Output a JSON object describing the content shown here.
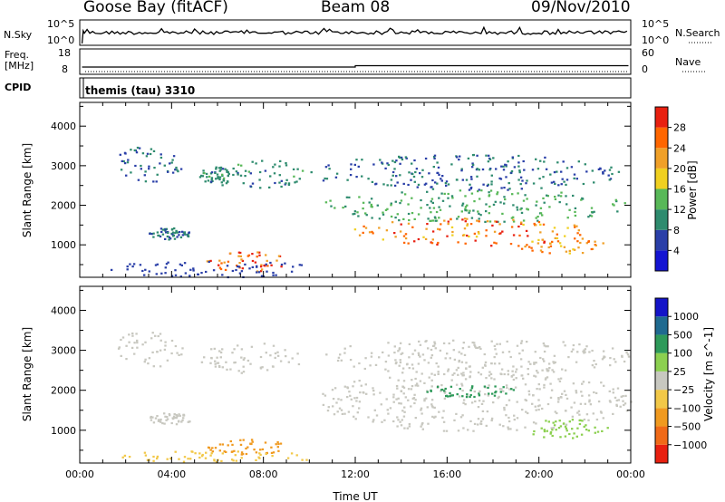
{
  "header": {
    "station": "Goose Bay (fitACF)",
    "beam": "Beam 08",
    "date": "09/Nov/2010"
  },
  "top_panels": {
    "nsky_label": "N.Sky",
    "nsearch_label": "N.Search",
    "nsky_ticks": [
      "10^5",
      "10^0"
    ],
    "nsearch_ticks": [
      "10^5",
      "10^0"
    ],
    "freq_label": "Freq.",
    "freq_unit": "[MHz]",
    "freq_ticks": [
      "18",
      "8"
    ],
    "nave_label": "Nave",
    "nave_ticks": [
      "60",
      "0"
    ],
    "cpid_label": "CPID",
    "cpid_value": "themis (tau) 3310"
  },
  "colors": {
    "power": [
      "#1414d2",
      "#2a3fa8",
      "#2e8b6e",
      "#58b858",
      "#f0d020",
      "#f0a028",
      "#ff6600",
      "#e82010"
    ],
    "velocity": [
      "#e82010",
      "#f06a18",
      "#f09a20",
      "#f2c848",
      "#c8c8c0",
      "#8cd050",
      "#2e9a5a",
      "#1f6a90",
      "#1414c8"
    ]
  },
  "chart_data": [
    {
      "type": "heatmap",
      "name": "power",
      "title": "",
      "xlabel": "",
      "ylabel": "Slant Range [km]",
      "xlim": [
        "00:00",
        "24:00"
      ],
      "ylim": [
        180,
        4600
      ],
      "xticks": [
        "00:00",
        "04:00",
        "08:00",
        "12:00",
        "16:00",
        "20:00",
        "00:00"
      ],
      "yticks": [
        1000,
        2000,
        3000,
        4000
      ],
      "colorbar": {
        "label": "Power [dB]",
        "ticks": [
          4,
          8,
          12,
          16,
          20,
          24,
          28
        ],
        "range": [
          0,
          32
        ]
      },
      "regions": [
        {
          "t": [
            1.5,
            4.5
          ],
          "r": [
            2600,
            3500
          ],
          "value": 8
        },
        {
          "t": [
            5.2,
            6.5
          ],
          "r": [
            2500,
            3000
          ],
          "value": 10
        },
        {
          "t": [
            6.5,
            9.8
          ],
          "r": [
            2450,
            3200
          ],
          "value": 10
        },
        {
          "t": [
            3.0,
            4.8
          ],
          "r": [
            1150,
            1450
          ],
          "value": 9
        },
        {
          "t": [
            5.5,
            9.0
          ],
          "r": [
            350,
            850
          ],
          "value": 27
        },
        {
          "t": [
            1.0,
            10.5
          ],
          "r": [
            200,
            600
          ],
          "value": 6
        },
        {
          "t": [
            10.5,
            24.0
          ],
          "r": [
            1600,
            2400
          ],
          "value": 12
        },
        {
          "t": [
            11.5,
            22.0
          ],
          "r": [
            1000,
            1700
          ],
          "value": 24
        },
        {
          "t": [
            19.0,
            23.0
          ],
          "r": [
            800,
            1200
          ],
          "value": 22
        },
        {
          "t": [
            10.0,
            23.5
          ],
          "r": [
            2400,
            3300
          ],
          "value": 8
        }
      ]
    },
    {
      "type": "heatmap",
      "name": "velocity",
      "title": "",
      "xlabel": "Time UT",
      "ylabel": "Slant Range [km]",
      "xlim": [
        "00:00",
        "24:00"
      ],
      "ylim": [
        180,
        4600
      ],
      "xticks": [
        "00:00",
        "04:00",
        "08:00",
        "12:00",
        "16:00",
        "20:00",
        "00:00"
      ],
      "yticks": [
        1000,
        2000,
        3000,
        4000
      ],
      "colorbar": {
        "label": "Velocity [m s^-1]",
        "ticks": [
          "1000",
          "500",
          "100",
          "25",
          "−25",
          "−100",
          "−500",
          "−1000"
        ]
      },
      "regions": [
        {
          "t": [
            1.5,
            4.5
          ],
          "r": [
            2600,
            3500
          ],
          "value": 0
        },
        {
          "t": [
            5.2,
            9.8
          ],
          "r": [
            2450,
            3200
          ],
          "value": 0
        },
        {
          "t": [
            3.0,
            4.8
          ],
          "r": [
            1150,
            1450
          ],
          "value": 0
        },
        {
          "t": [
            5.5,
            9.0
          ],
          "r": [
            400,
            800
          ],
          "value": -150
        },
        {
          "t": [
            1.0,
            10.5
          ],
          "r": [
            200,
            500
          ],
          "value": -60
        },
        {
          "t": [
            10.5,
            24.0
          ],
          "r": [
            1000,
            2500
          ],
          "value": 0
        },
        {
          "t": [
            19.5,
            23.0
          ],
          "r": [
            800,
            1300
          ],
          "value": 80
        },
        {
          "t": [
            15.0,
            19.0
          ],
          "r": [
            1850,
            2150
          ],
          "value": 300
        },
        {
          "t": [
            10.5,
            24.0
          ],
          "r": [
            2400,
            3300
          ],
          "value": 0
        }
      ]
    }
  ]
}
